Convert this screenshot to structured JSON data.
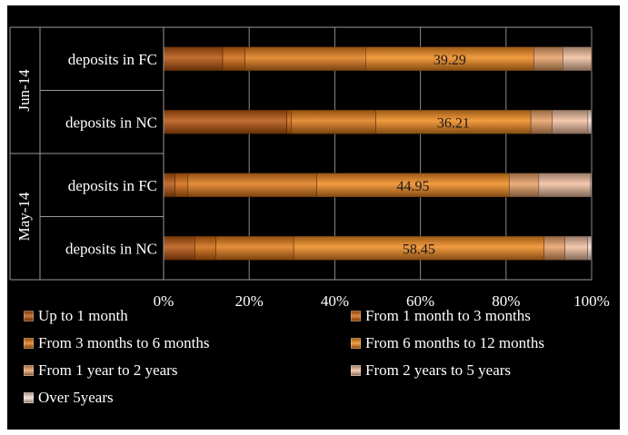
{
  "chart_data": {
    "type": "bar",
    "orientation": "horizontal",
    "stacked": "percent",
    "xlim": [
      0,
      100
    ],
    "x_ticks": [
      "0%",
      "20%",
      "40%",
      "60%",
      "80%",
      "100%"
    ],
    "groups": [
      {
        "label": "Jun-14",
        "categories": [
          "deposits in FC",
          "deposits in NC"
        ]
      },
      {
        "label": "May-14",
        "categories": [
          "deposits in FC",
          "deposits in NC"
        ]
      }
    ],
    "bars": [
      {
        "group": "Jun-14",
        "category": "deposits in FC",
        "segments": [
          13.8,
          5.2,
          28.2,
          39.29,
          6.8,
          6.7
        ],
        "label": "39.29"
      },
      {
        "group": "Jun-14",
        "category": "deposits in NC",
        "segments": [
          28.8,
          1.0,
          19.8,
          36.21,
          5.0,
          8.3,
          0.89
        ],
        "label": "36.21"
      },
      {
        "group": "May-14",
        "category": "deposits in FC",
        "segments": [
          2.7,
          3.0,
          30.1,
          44.95,
          6.9,
          12.0,
          0.35
        ],
        "label": "44.95"
      },
      {
        "group": "May-14",
        "category": "deposits in NC",
        "segments": [
          7.3,
          4.9,
          18.2,
          58.45,
          4.9,
          5.3,
          0.95
        ],
        "label": "58.45"
      }
    ],
    "series": [
      {
        "name": "Up to 1 month",
        "color": "#b8560f"
      },
      {
        "name": "From 1 month to 3 months",
        "color": "#d2690f"
      },
      {
        "name": "From 3 months to 6 months",
        "color": "#e07b1a"
      },
      {
        "name": "From 6 months to 12 months",
        "color": "#f08a20"
      },
      {
        "name": "From 1 year to 2 years",
        "color": "#e9a066"
      },
      {
        "name": "From 2 years to 5 years",
        "color": "#f2c0a0"
      },
      {
        "name": "Over 5years",
        "color": "#f7ddd0"
      }
    ],
    "grid": true,
    "legend_position": "bottom"
  }
}
